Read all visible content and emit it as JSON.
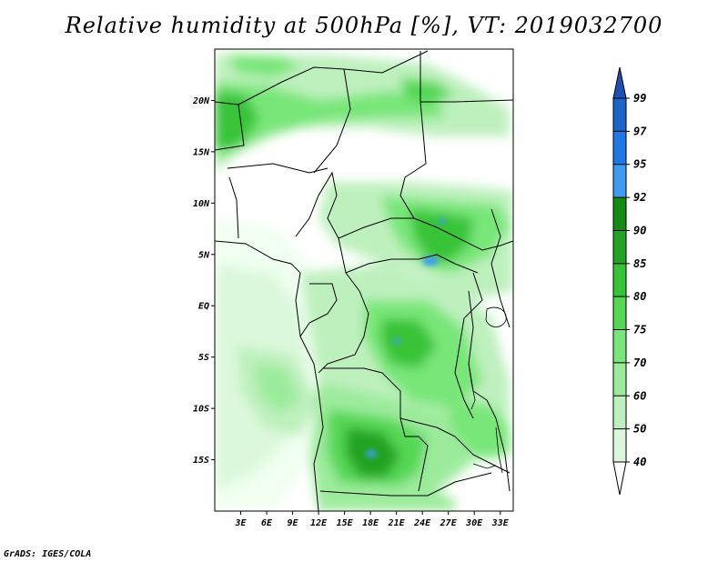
{
  "title": "Relative humidity at 500hPa [%], VT: 2019032700",
  "credit": "GrADS: IGES/COLA",
  "map": {
    "lon_range": [
      0,
      34.5
    ],
    "lat_range": [
      -20,
      25
    ],
    "lat_ticks": [
      {
        "value": 20,
        "label": "20N"
      },
      {
        "value": 15,
        "label": "15N"
      },
      {
        "value": 10,
        "label": "10N"
      },
      {
        "value": 5,
        "label": "5N"
      },
      {
        "value": 0,
        "label": "EQ"
      },
      {
        "value": -5,
        "label": "5S"
      },
      {
        "value": -10,
        "label": "10S"
      },
      {
        "value": -15,
        "label": "15S"
      }
    ],
    "lon_ticks": [
      {
        "value": 3,
        "label": "3E"
      },
      {
        "value": 6,
        "label": "6E"
      },
      {
        "value": 9,
        "label": "9E"
      },
      {
        "value": 12,
        "label": "12E"
      },
      {
        "value": 15,
        "label": "15E"
      },
      {
        "value": 18,
        "label": "18E"
      },
      {
        "value": 21,
        "label": "21E"
      },
      {
        "value": 24,
        "label": "24E"
      },
      {
        "value": 27,
        "label": "27E"
      },
      {
        "value": 30,
        "label": "30E"
      },
      {
        "value": 33,
        "label": "33E"
      }
    ]
  },
  "colorbar": {
    "levels": [
      {
        "label": "99",
        "color": "#1d64c8"
      },
      {
        "label": "97",
        "color": "#1e78e6"
      },
      {
        "label": "95",
        "color": "#3d9cf0"
      },
      {
        "label": "92",
        "color": "#148c14"
      },
      {
        "label": "90",
        "color": "#23a323"
      },
      {
        "label": "85",
        "color": "#37c337"
      },
      {
        "label": "80",
        "color": "#55d755"
      },
      {
        "label": "75",
        "color": "#78e678"
      },
      {
        "label": "70",
        "color": "#9ceb9c"
      },
      {
        "label": "60",
        "color": "#bef0be"
      },
      {
        "label": "50",
        "color": "#dcf8dc"
      },
      {
        "label": "40",
        "color": "#f0fff0"
      }
    ],
    "top_arrow_color": "#1d50b4",
    "bottom_arrow_color": "#ffffff"
  },
  "humidity_colors": {
    "c40": "#f0fff0",
    "c50": "#dcf8dc",
    "c60": "#bef0be",
    "c70": "#9ceb9c",
    "c75": "#78e678",
    "c80": "#55d755",
    "c85": "#37c337",
    "c90": "#23a323",
    "c95": "#3d9cf0"
  }
}
